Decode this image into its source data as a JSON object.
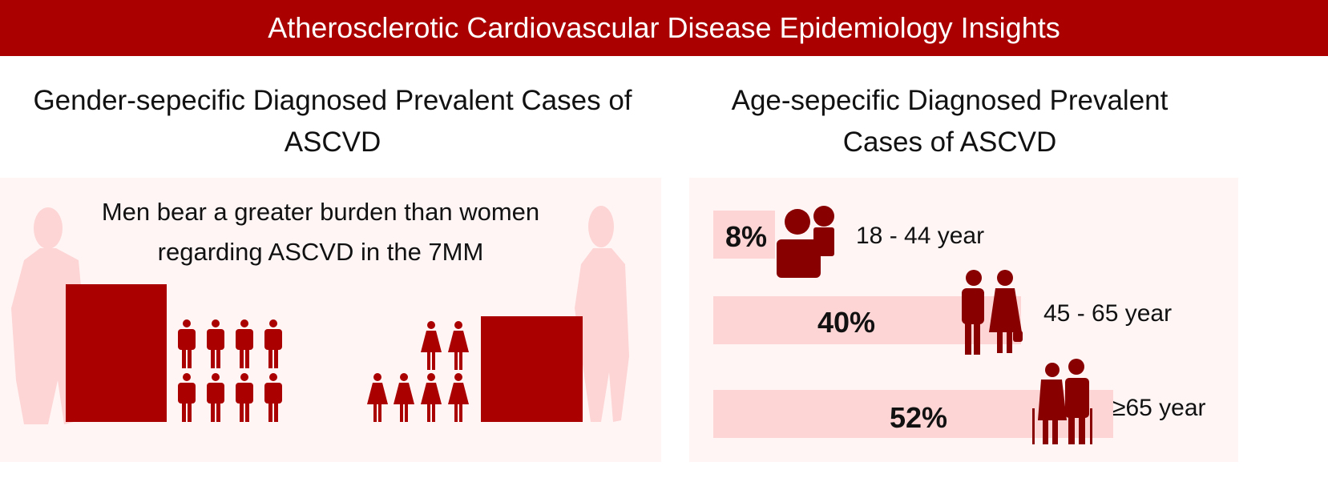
{
  "header": {
    "title": "Atherosclerotic Cardiovascular Disease Epidemiology Insights"
  },
  "gender": {
    "title": "Gender-sepecific Diagnosed Prevalent Cases of ASCVD",
    "note_line1": "Men bear a greater burden than women",
    "note_line2": "regarding ASCVD in the 7MM",
    "men_icons": 8,
    "women_icons": 6
  },
  "age": {
    "title_line1": "Age-sepecific Diagnosed Prevalent",
    "title_line2": "Cases of ASCVD",
    "groups": [
      {
        "label": "18 - 44 year",
        "percent_label": "8%",
        "percent": 8
      },
      {
        "label": "45 - 65 year",
        "percent_label": "40%",
        "percent": 40
      },
      {
        "label": "≥65 year",
        "percent_label": "52%",
        "percent": 52
      }
    ]
  },
  "colors": {
    "accent": "#aa0000",
    "icon": "#880000",
    "light": "#fdd5d5",
    "panel": "#fff5f5"
  }
}
